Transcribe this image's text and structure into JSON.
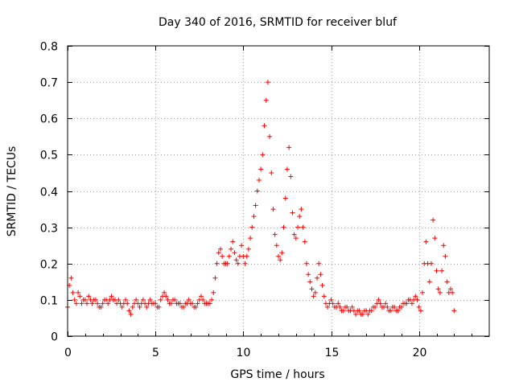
{
  "chart_data": {
    "type": "scatter",
    "title": "Day 340 of 2016, SRMTID for receiver bluf",
    "xlabel": "GPS time / hours",
    "ylabel": "SRMTID / TECUs",
    "xlim": [
      0,
      24
    ],
    "ylim": [
      0,
      0.8
    ],
    "xticks": [
      0,
      5,
      10,
      15,
      20
    ],
    "yticks": [
      0,
      0.1,
      0.2,
      0.3,
      0.4,
      0.5,
      0.6,
      0.7,
      0.8
    ],
    "grid": true,
    "marker": "+",
    "color": "#ff0000",
    "x_start": 0,
    "x_step": 0.1,
    "series": [
      {
        "name": "SRMTID",
        "values": [
          0.08,
          0.14,
          0.16,
          0.12,
          0.1,
          0.09,
          0.12,
          0.11,
          0.09,
          0.1,
          0.1,
          0.09,
          0.11,
          0.1,
          0.09,
          0.1,
          0.1,
          0.09,
          0.08,
          0.08,
          0.09,
          0.1,
          0.1,
          0.09,
          0.1,
          0.11,
          0.1,
          0.1,
          0.09,
          0.1,
          0.09,
          0.08,
          0.09,
          0.1,
          0.09,
          0.07,
          0.06,
          0.08,
          0.09,
          0.1,
          0.09,
          0.08,
          0.09,
          0.1,
          0.09,
          0.08,
          0.09,
          0.1,
          0.09,
          0.09,
          0.09,
          0.08,
          0.08,
          0.1,
          0.11,
          0.12,
          0.11,
          0.1,
          0.09,
          0.09,
          0.1,
          0.1,
          0.09,
          0.09,
          0.09,
          0.08,
          0.08,
          0.09,
          0.09,
          0.1,
          0.09,
          0.09,
          0.08,
          0.08,
          0.09,
          0.1,
          0.11,
          0.1,
          0.09,
          0.09,
          0.09,
          0.09,
          0.1,
          0.12,
          0.16,
          0.2,
          0.23,
          0.24,
          0.22,
          0.2,
          0.2,
          0.2,
          0.22,
          0.24,
          0.26,
          0.23,
          0.21,
          0.2,
          0.22,
          0.25,
          0.22,
          0.2,
          0.22,
          0.24,
          0.27,
          0.3,
          0.33,
          0.36,
          0.4,
          0.43,
          0.46,
          0.5,
          0.58,
          0.65,
          0.7,
          0.55,
          0.45,
          0.35,
          0.28,
          0.25,
          0.22,
          0.21,
          0.23,
          0.3,
          0.38,
          0.46,
          0.52,
          0.44,
          0.34,
          0.28,
          0.27,
          0.3,
          0.33,
          0.35,
          0.3,
          0.26,
          0.2,
          0.17,
          0.15,
          0.13,
          0.11,
          0.12,
          0.16,
          0.2,
          0.17,
          0.14,
          0.11,
          0.09,
          0.08,
          0.09,
          0.1,
          0.09,
          0.08,
          0.08,
          0.09,
          0.08,
          0.07,
          0.07,
          0.08,
          0.08,
          0.07,
          0.07,
          0.08,
          0.07,
          0.06,
          0.07,
          0.07,
          0.06,
          0.06,
          0.07,
          0.07,
          0.06,
          0.07,
          0.07,
          0.08,
          0.08,
          0.09,
          0.1,
          0.09,
          0.08,
          0.08,
          0.09,
          0.08,
          0.07,
          0.07,
          0.08,
          0.08,
          0.07,
          0.07,
          0.08,
          0.08,
          0.09,
          0.09,
          0.09,
          0.1,
          0.1,
          0.09,
          0.1,
          0.11,
          0.1,
          0.08,
          0.07,
          0.12,
          0.2,
          0.26,
          0.2,
          0.15,
          0.2,
          0.32,
          0.27,
          0.18,
          0.13,
          0.12,
          0.18,
          0.25,
          0.22,
          0.15,
          0.12,
          0.13,
          0.12,
          0.07
        ]
      }
    ]
  }
}
